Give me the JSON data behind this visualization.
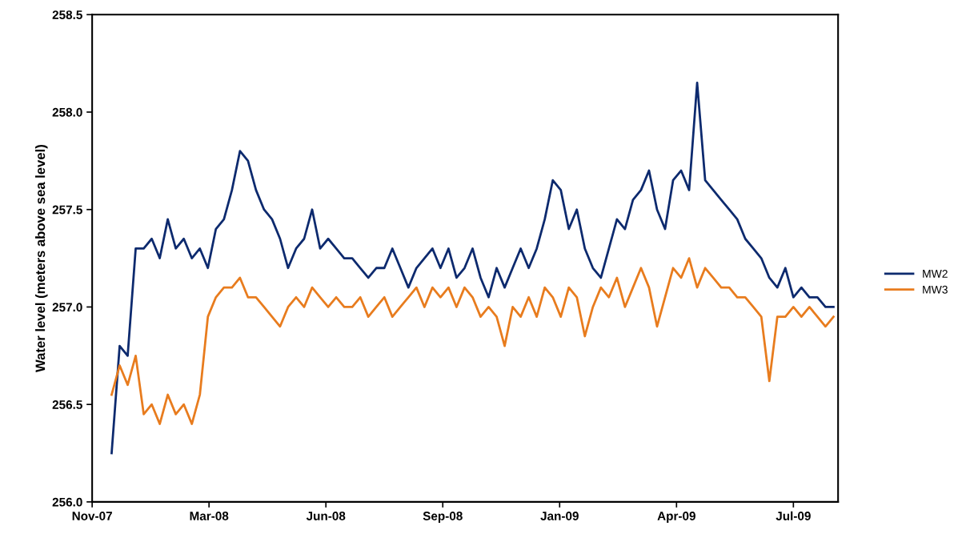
{
  "chart_data": {
    "type": "line",
    "ylabel": "Water level (meters above sea level)",
    "x": [
      "2007-12-07",
      "2007-12-14",
      "2007-12-21",
      "2007-12-28",
      "2008-01-04",
      "2008-01-11",
      "2008-01-18",
      "2008-01-25",
      "2008-02-01",
      "2008-02-08",
      "2008-02-15",
      "2008-02-22",
      "2008-02-29",
      "2008-03-07",
      "2008-03-14",
      "2008-03-21",
      "2008-03-28",
      "2008-04-04",
      "2008-04-11",
      "2008-04-18",
      "2008-04-25",
      "2008-05-02",
      "2008-05-09",
      "2008-05-16",
      "2008-05-23",
      "2008-05-30",
      "2008-06-06",
      "2008-06-13",
      "2008-06-20",
      "2008-06-27",
      "2008-07-04",
      "2008-07-11",
      "2008-07-18",
      "2008-07-25",
      "2008-08-01",
      "2008-08-08",
      "2008-08-15",
      "2008-08-22",
      "2008-08-29",
      "2008-09-05",
      "2008-09-12",
      "2008-09-19",
      "2008-09-26",
      "2008-10-03",
      "2008-10-10",
      "2008-10-17",
      "2008-10-24",
      "2008-10-31",
      "2008-11-07",
      "2008-11-14",
      "2008-11-21",
      "2008-11-28",
      "2008-12-05",
      "2008-12-12",
      "2008-12-19",
      "2008-12-26",
      "2009-01-02",
      "2009-01-09",
      "2009-01-16",
      "2009-01-23",
      "2009-01-30",
      "2009-02-06",
      "2009-02-13",
      "2009-02-20",
      "2009-02-27",
      "2009-03-06",
      "2009-03-13",
      "2009-03-20",
      "2009-03-27",
      "2009-04-03",
      "2009-04-10",
      "2009-04-17",
      "2009-04-24",
      "2009-05-01",
      "2009-05-08",
      "2009-05-15",
      "2009-05-22",
      "2009-05-29",
      "2009-06-05",
      "2009-06-12",
      "2009-06-19",
      "2009-06-26",
      "2009-07-03",
      "2009-07-10",
      "2009-07-17",
      "2009-07-24",
      "2009-07-31",
      "2009-08-07",
      "2009-08-14",
      "2009-08-21",
      "2009-08-28"
    ],
    "series": [
      {
        "name": "MW2",
        "color": "#0d2a6e",
        "values": [
          256.25,
          256.8,
          256.75,
          257.3,
          257.3,
          257.35,
          257.25,
          257.45,
          257.3,
          257.35,
          257.25,
          257.3,
          257.2,
          257.4,
          257.45,
          257.6,
          257.8,
          257.75,
          257.6,
          257.5,
          257.45,
          257.35,
          257.2,
          257.3,
          257.35,
          257.5,
          257.3,
          257.35,
          257.3,
          257.25,
          257.25,
          257.2,
          257.15,
          257.2,
          257.2,
          257.3,
          257.2,
          257.1,
          257.2,
          257.25,
          257.3,
          257.2,
          257.3,
          257.15,
          257.2,
          257.3,
          257.15,
          257.05,
          257.2,
          257.1,
          257.2,
          257.3,
          257.2,
          257.3,
          257.45,
          257.65,
          257.6,
          257.4,
          257.5,
          257.3,
          257.2,
          257.15,
          257.3,
          257.45,
          257.4,
          257.55,
          257.6,
          257.7,
          257.5,
          257.4,
          257.65,
          257.7,
          257.6,
          258.15,
          257.65,
          257.6,
          257.55,
          257.5,
          257.45,
          257.35,
          257.3,
          257.25,
          257.15,
          257.1,
          257.2,
          257.05,
          257.1,
          257.05,
          257.05,
          257.0,
          257.0
        ]
      },
      {
        "name": "MW3",
        "color": "#e87c1e",
        "values": [
          256.55,
          256.7,
          256.6,
          256.75,
          256.45,
          256.5,
          256.4,
          256.55,
          256.45,
          256.5,
          256.4,
          256.55,
          256.95,
          257.05,
          257.1,
          257.1,
          257.15,
          257.05,
          257.05,
          257.0,
          256.95,
          256.9,
          257.0,
          257.05,
          257.0,
          257.1,
          257.05,
          257.0,
          257.05,
          257.0,
          257.0,
          257.05,
          256.95,
          257.0,
          257.05,
          256.95,
          257.0,
          257.05,
          257.1,
          257.0,
          257.1,
          257.05,
          257.1,
          257.0,
          257.1,
          257.05,
          256.95,
          257.0,
          256.95,
          256.8,
          257.0,
          256.95,
          257.05,
          256.95,
          257.1,
          257.05,
          256.95,
          257.1,
          257.05,
          256.85,
          257.0,
          257.1,
          257.05,
          257.15,
          257.0,
          257.1,
          257.2,
          257.1,
          256.9,
          257.05,
          257.2,
          257.15,
          257.25,
          257.1,
          257.2,
          257.15,
          257.1,
          257.1,
          257.05,
          257.05,
          257.0,
          256.95,
          256.62,
          256.95,
          256.95,
          257.0,
          256.95,
          257.0,
          256.95,
          256.9,
          256.95
        ]
      }
    ],
    "xlim": [
      "2007-11-20",
      "2009-09-01"
    ],
    "xticks": [
      {
        "value": "2007-11-20",
        "label": "Nov-07"
      },
      {
        "value": "2008-03-01",
        "label": "Mar-08"
      },
      {
        "value": "2008-06-11",
        "label": "Jun-08"
      },
      {
        "value": "2008-09-21",
        "label": "Sep-08"
      },
      {
        "value": "2009-01-01",
        "label": "Jan-09"
      },
      {
        "value": "2009-04-13",
        "label": "Apr-09"
      },
      {
        "value": "2009-07-24",
        "label": "Jul-09"
      }
    ],
    "ylim": [
      256.0,
      258.5
    ],
    "yticks": [
      {
        "value": 256.0,
        "label": "256.0"
      },
      {
        "value": 256.5,
        "label": "256.5"
      },
      {
        "value": 257.0,
        "label": "257.0"
      },
      {
        "value": 257.5,
        "label": "257.5"
      },
      {
        "value": 258.0,
        "label": "258.0"
      },
      {
        "value": 258.5,
        "label": "258.5"
      }
    ],
    "grid": false,
    "legend": "right",
    "line_style": "solid",
    "marker": "none"
  }
}
